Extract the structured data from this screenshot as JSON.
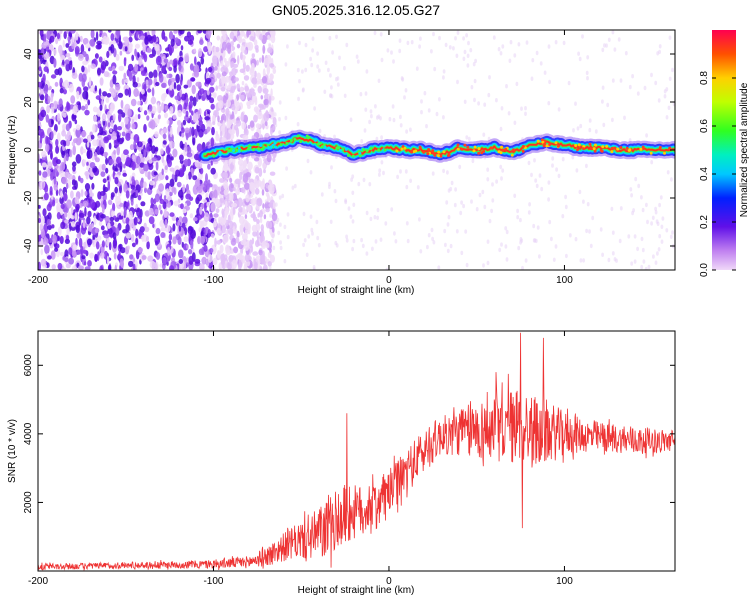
{
  "title": "GN05.2025.316.12.05.G27",
  "chart_data": [
    {
      "type": "heatmap",
      "name": "spectrogram",
      "xlabel": "Height of straight line (km)",
      "ylabel": "Frequency (Hz)",
      "xlim": [
        -200,
        163
      ],
      "ylim": [
        -50,
        50
      ],
      "xticks": [
        -200,
        -100,
        0,
        100
      ],
      "xtick_labels": [
        "-200",
        "-100",
        "0",
        "100"
      ],
      "yticks": [
        -40,
        -20,
        0,
        20,
        40
      ],
      "ytick_labels": [
        "-40",
        "-20",
        "0",
        "20",
        "40"
      ],
      "colorbar": {
        "label": "Normalized spectral amplitude",
        "range": [
          0,
          1
        ],
        "ticks": [
          0.0,
          0.2,
          0.4,
          0.6,
          0.8
        ],
        "tick_labels": [
          "0.0",
          "0.2",
          "0.4",
          "0.6",
          "0.8"
        ]
      },
      "noise_region_km": [
        -200,
        -88
      ],
      "signal_start_km": -105,
      "signal_center_trace": {
        "x": [
          -105,
          -90,
          -75,
          -60,
          -50,
          -45,
          -38,
          -30,
          -20,
          -10,
          0,
          10,
          20,
          30,
          40,
          50,
          60,
          70,
          80,
          90,
          100,
          110,
          120,
          130,
          140,
          150,
          163
        ],
        "y": [
          -2,
          0,
          1,
          3,
          5,
          4,
          2,
          1,
          -2,
          0,
          1,
          0,
          0,
          -2,
          1,
          0,
          1,
          -1,
          2,
          3,
          2,
          1,
          1,
          0,
          0,
          0,
          0
        ]
      }
    },
    {
      "type": "line",
      "name": "snr",
      "xlabel": "Height of straight line (km)",
      "ylabel": "SNR (10 * v/v)",
      "xlim": [
        -200,
        163
      ],
      "ylim": [
        0,
        7000
      ],
      "xticks": [
        -200,
        -100,
        0,
        100
      ],
      "xtick_labels": [
        "-200",
        "-100",
        "0",
        "100"
      ],
      "yticks": [
        2000,
        4000,
        6000
      ],
      "ytick_labels": [
        "2000",
        "4000",
        "6000"
      ],
      "color": "#ee3333",
      "envelope": {
        "x": [
          -200,
          -150,
          -100,
          -80,
          -70,
          -60,
          -50,
          -45,
          -40,
          -35,
          -30,
          -25,
          -20,
          -10,
          0,
          10,
          20,
          30,
          40,
          50,
          60,
          70,
          75,
          80,
          90,
          100,
          110,
          120,
          130,
          140,
          150,
          163
        ],
        "mean": [
          120,
          160,
          200,
          260,
          420,
          700,
          900,
          950,
          1100,
          1200,
          1500,
          1600,
          1700,
          1900,
          2300,
          2900,
          3500,
          3950,
          4050,
          4100,
          4150,
          4200,
          4250,
          4150,
          4050,
          4000,
          3950,
          3900,
          3850,
          3800,
          3800,
          3800
        ],
        "amp": [
          90,
          90,
          120,
          180,
          280,
          420,
          550,
          650,
          800,
          900,
          850,
          900,
          800,
          650,
          650,
          650,
          650,
          550,
          700,
          850,
          950,
          1100,
          1150,
          1050,
          950,
          650,
          500,
          450,
          400,
          380,
          360,
          330
        ]
      },
      "spikes": [
        {
          "x": 75,
          "y": 6950
        },
        {
          "x": 88,
          "y": 6800
        },
        {
          "x": 61,
          "y": 5800
        },
        {
          "x": 68,
          "y": 5750
        },
        {
          "x": -24,
          "y": 4600
        },
        {
          "x": 76,
          "y": 1250
        },
        {
          "x": -33,
          "y": 100
        }
      ]
    }
  ]
}
